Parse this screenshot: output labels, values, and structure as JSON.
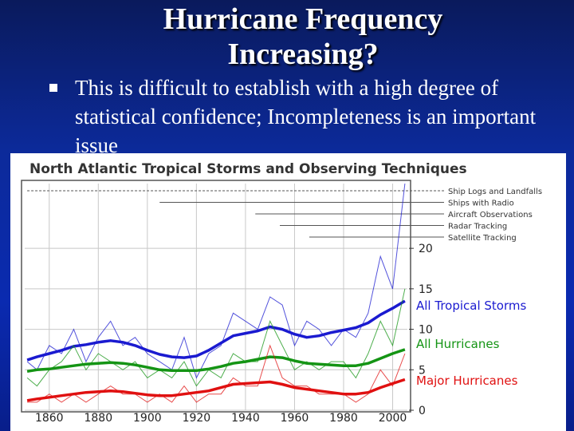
{
  "slide": {
    "title": "Hurricane Frequency Increasing?",
    "bullet": "This is difficult to establish with a high degree of statistical confidence; Incompleteness is an important issue"
  },
  "colors": {
    "background": "#0c2a9a",
    "storms": "#1a1ad0",
    "hurricanes": "#149414",
    "major": "#e01010",
    "grid": "#c8c8c8",
    "observing_lines": "#555555"
  },
  "chart_data": {
    "type": "line",
    "title": "North Atlantic Tropical Storms and Observing Techniques",
    "x_ticks": [
      1860,
      1880,
      1900,
      1920,
      1940,
      1960,
      1980,
      2000
    ],
    "y_ticks": [
      0,
      5,
      10,
      15,
      20
    ],
    "xlim": [
      1850,
      2006
    ],
    "ylim": [
      0,
      28
    ],
    "observing_techniques": [
      {
        "name": "Ship Logs and Landfalls",
        "start_year": 1851
      },
      {
        "name": "Ships with Radio",
        "start_year": 1905
      },
      {
        "name": "Aircraft Observations",
        "start_year": 1944
      },
      {
        "name": "Radar Tracking",
        "start_year": 1954
      },
      {
        "name": "Satellite Tracking",
        "start_year": 1966
      }
    ],
    "series": [
      {
        "name": "All Tropical Storms",
        "color": "#1a1ad0",
        "x": [
          1851,
          1855,
          1860,
          1865,
          1870,
          1875,
          1880,
          1885,
          1890,
          1895,
          1900,
          1905,
          1910,
          1915,
          1920,
          1925,
          1930,
          1935,
          1940,
          1945,
          1950,
          1955,
          1960,
          1965,
          1970,
          1975,
          1980,
          1985,
          1990,
          1995,
          2000,
          2005
        ],
        "annual": [
          6,
          5,
          8,
          7,
          10,
          6,
          9,
          11,
          8,
          9,
          7,
          6,
          5,
          9,
          4,
          7,
          8,
          12,
          11,
          10,
          14,
          13,
          8,
          11,
          10,
          8,
          10,
          9,
          12,
          19,
          15,
          28
        ],
        "smoothed": [
          6.2,
          6.6,
          7.0,
          7.4,
          7.9,
          8.1,
          8.4,
          8.6,
          8.4,
          8.0,
          7.4,
          6.9,
          6.6,
          6.5,
          6.7,
          7.4,
          8.3,
          9.2,
          9.5,
          9.8,
          10.3,
          10.0,
          9.4,
          9.0,
          9.2,
          9.6,
          9.9,
          10.2,
          10.8,
          11.8,
          12.6,
          13.5
        ]
      },
      {
        "name": "All Hurricanes",
        "color": "#149414",
        "x": [
          1851,
          1855,
          1860,
          1865,
          1870,
          1875,
          1880,
          1885,
          1890,
          1895,
          1900,
          1905,
          1910,
          1915,
          1920,
          1925,
          1930,
          1935,
          1940,
          1945,
          1950,
          1955,
          1960,
          1965,
          1970,
          1975,
          1980,
          1985,
          1990,
          1995,
          2000,
          2005
        ],
        "annual": [
          4,
          3,
          5,
          6,
          8,
          5,
          7,
          6,
          5,
          6,
          4,
          5,
          4,
          6,
          3,
          5,
          4,
          7,
          6,
          6,
          11,
          8,
          5,
          6,
          5,
          6,
          6,
          4,
          7,
          11,
          8,
          15
        ],
        "smoothed": [
          4.8,
          5.0,
          5.1,
          5.3,
          5.5,
          5.7,
          5.8,
          5.9,
          5.8,
          5.6,
          5.3,
          5.0,
          4.9,
          4.9,
          4.9,
          5.1,
          5.4,
          5.8,
          6.0,
          6.3,
          6.6,
          6.5,
          6.1,
          5.8,
          5.7,
          5.6,
          5.5,
          5.5,
          5.8,
          6.4,
          7.0,
          7.5
        ]
      },
      {
        "name": "Major Hurricanes",
        "color": "#e01010",
        "x": [
          1851,
          1855,
          1860,
          1865,
          1870,
          1875,
          1880,
          1885,
          1890,
          1895,
          1900,
          1905,
          1910,
          1915,
          1920,
          1925,
          1930,
          1935,
          1940,
          1945,
          1950,
          1955,
          1960,
          1965,
          1970,
          1975,
          1980,
          1985,
          1990,
          1995,
          2000,
          2005
        ],
        "annual": [
          1,
          1,
          2,
          1,
          2,
          1,
          2,
          3,
          2,
          2,
          1,
          2,
          1,
          3,
          1,
          2,
          2,
          4,
          3,
          3,
          8,
          4,
          3,
          3,
          2,
          2,
          2,
          1,
          2,
          5,
          3,
          7
        ],
        "smoothed": [
          1.2,
          1.4,
          1.6,
          1.8,
          2.0,
          2.2,
          2.3,
          2.4,
          2.3,
          2.1,
          1.9,
          1.8,
          1.8,
          2.0,
          2.2,
          2.4,
          2.8,
          3.2,
          3.3,
          3.4,
          3.5,
          3.2,
          2.8,
          2.6,
          2.4,
          2.2,
          2.0,
          2.0,
          2.2,
          2.8,
          3.3,
          3.8
        ]
      }
    ]
  }
}
